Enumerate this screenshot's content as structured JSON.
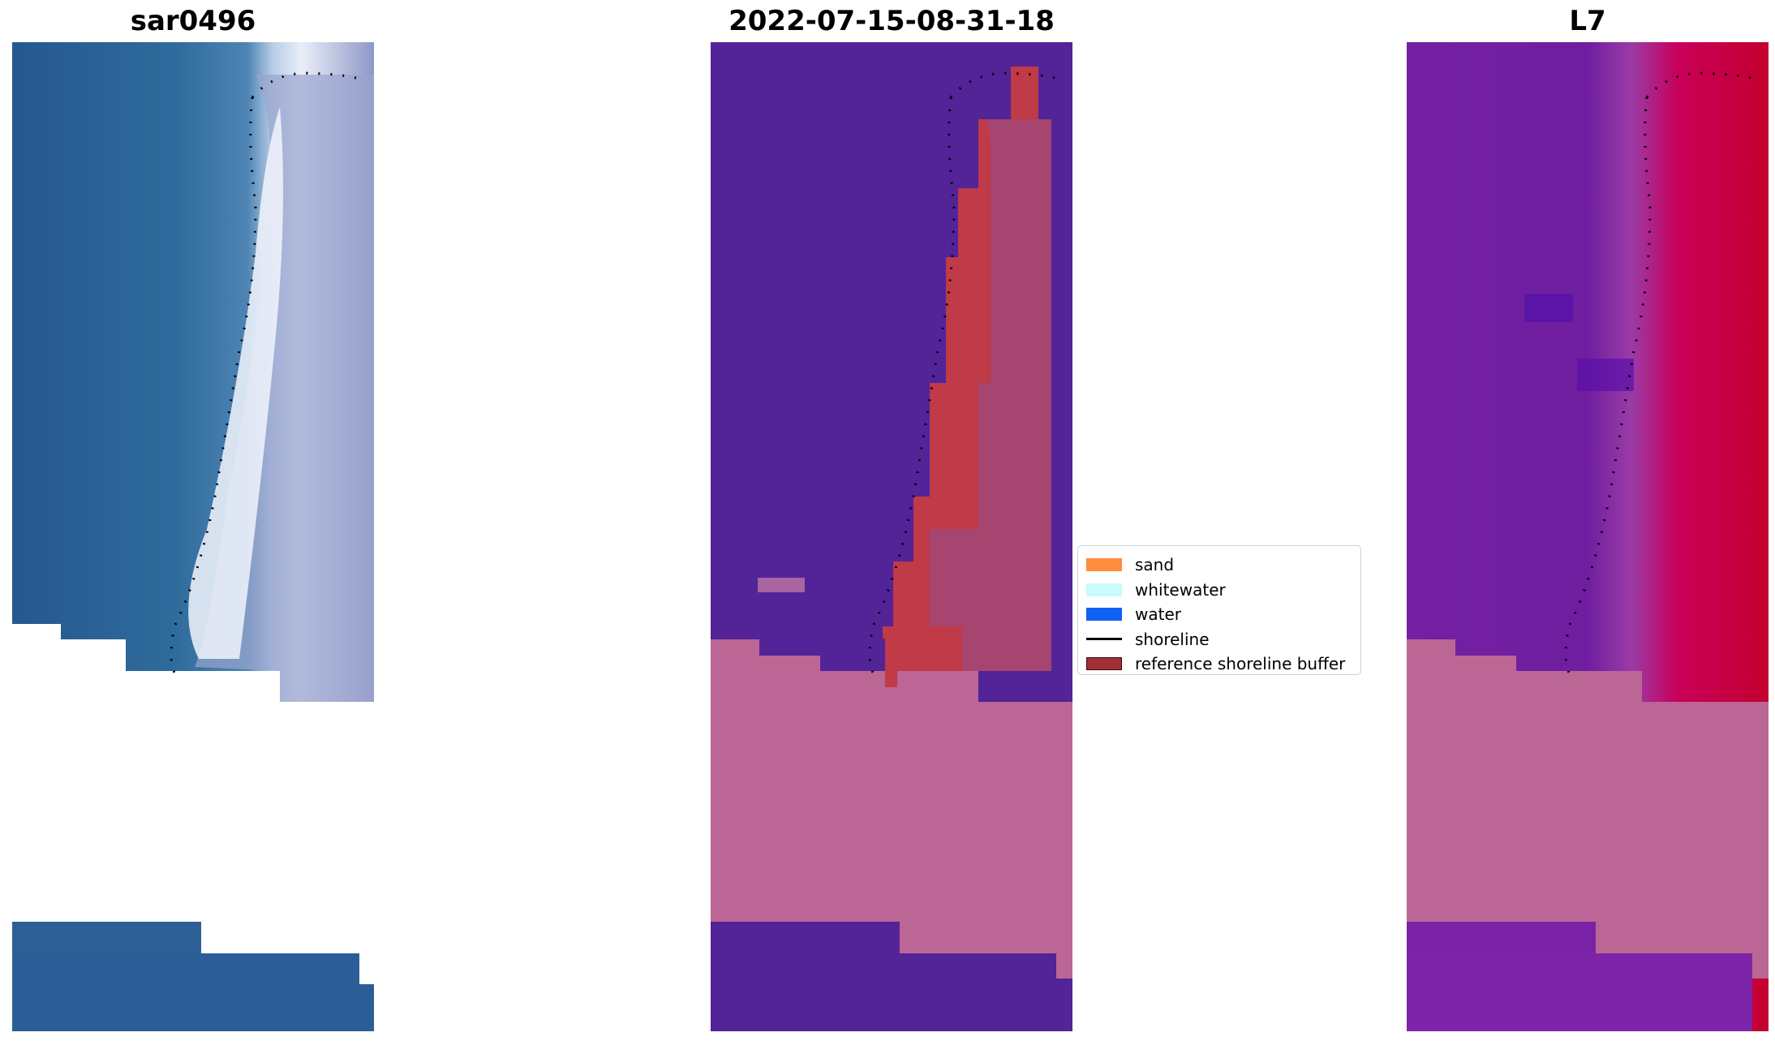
{
  "panels": [
    {
      "title": "sar0496"
    },
    {
      "title": "2022-07-15-08-31-18"
    },
    {
      "title": "L7"
    }
  ],
  "legend": {
    "items": [
      {
        "label": "sand",
        "color": "#ff8c3b",
        "kind": "swatch"
      },
      {
        "label": "whitewater",
        "color": "#c8fbfb",
        "kind": "swatch"
      },
      {
        "label": "water",
        "color": "#1060f5",
        "kind": "swatch"
      },
      {
        "label": "shoreline",
        "color": "#000000",
        "kind": "line"
      },
      {
        "label": "reference shoreline buffer",
        "color": "#a03038",
        "kind": "swatch"
      }
    ]
  },
  "colors": {
    "rgb_water": "#2f6b9f",
    "rgb_sand": "#dfe4f2",
    "class_water": "#532398",
    "class_buffer": "#c03a48",
    "nodata": "#bc6696",
    "l7_water": "#7a22a0",
    "l7_land": "#c4002e"
  }
}
